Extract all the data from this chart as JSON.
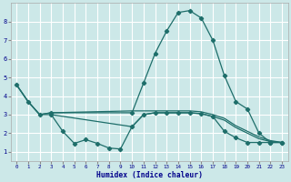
{
  "xlabel": "Humidex (Indice chaleur)",
  "bg_color": "#cce8e8",
  "grid_color": "#ffffff",
  "line_color": "#1e6e6a",
  "xlim": [
    -0.5,
    23.5
  ],
  "ylim": [
    0.5,
    9.0
  ],
  "xticks": [
    0,
    1,
    2,
    3,
    4,
    5,
    6,
    7,
    8,
    9,
    10,
    11,
    12,
    13,
    14,
    15,
    16,
    17,
    18,
    19,
    20,
    21,
    22,
    23
  ],
  "yticks": [
    1,
    2,
    3,
    4,
    5,
    6,
    7,
    8
  ],
  "curve1_x": [
    0,
    1,
    2,
    3,
    10,
    11,
    12,
    13,
    14,
    15,
    16,
    17,
    18,
    19,
    20,
    21,
    22,
    23
  ],
  "curve1_y": [
    4.6,
    3.7,
    3.0,
    3.1,
    3.1,
    4.7,
    6.3,
    7.5,
    8.5,
    8.6,
    8.2,
    7.0,
    5.1,
    3.7,
    3.3,
    2.0,
    1.5,
    1.5
  ],
  "curve2_x": [
    3,
    4,
    5,
    6,
    7,
    8,
    9,
    10,
    11,
    12,
    13,
    14,
    15,
    16,
    17,
    18,
    19,
    20,
    21,
    22,
    23
  ],
  "curve2_y": [
    3.0,
    2.1,
    1.45,
    1.65,
    1.45,
    1.2,
    1.15,
    2.35,
    3.0,
    3.1,
    3.1,
    3.1,
    3.1,
    3.05,
    2.9,
    2.1,
    1.75,
    1.5,
    1.5,
    1.5,
    1.5
  ],
  "curve3_x": [
    0,
    1,
    2,
    3,
    10,
    11,
    12,
    13,
    14,
    15,
    16,
    17,
    18,
    19,
    20,
    21,
    22,
    23
  ],
  "curve3_y": [
    4.6,
    3.7,
    3.0,
    3.1,
    3.2,
    3.2,
    3.2,
    3.2,
    3.2,
    3.2,
    3.15,
    3.0,
    2.8,
    2.4,
    2.1,
    1.8,
    1.6,
    1.5
  ],
  "curve4_x": [
    0,
    1,
    2,
    3,
    10,
    11,
    12,
    13,
    14,
    15,
    16,
    17,
    18,
    19,
    20,
    21,
    22,
    23
  ],
  "curve4_y": [
    4.6,
    3.7,
    3.0,
    3.0,
    2.35,
    3.0,
    3.1,
    3.1,
    3.1,
    3.1,
    3.05,
    2.9,
    2.7,
    2.3,
    2.0,
    1.7,
    1.55,
    1.5
  ]
}
